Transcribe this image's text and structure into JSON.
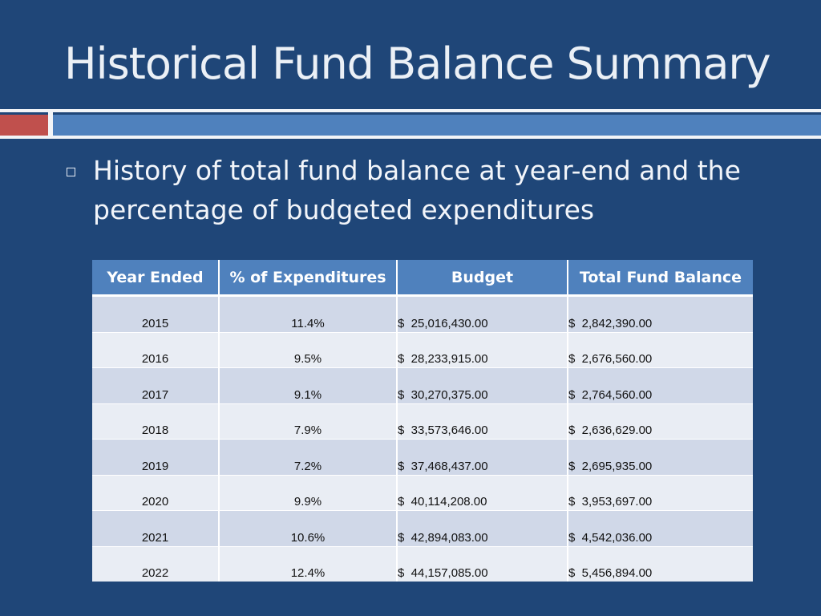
{
  "slide": {
    "title": "Historical Fund Balance Summary",
    "bullet": "History of total fund balance at year-end and the percentage of budgeted expenditures"
  },
  "table": {
    "headers": [
      "Year Ended",
      "% of Expenditures",
      "Budget",
      "Total Fund Balance"
    ],
    "rows": [
      {
        "year": "2015",
        "pct": "11.4%",
        "budget": "$  25,016,430.00",
        "balance": "$  2,842,390.00"
      },
      {
        "year": "2016",
        "pct": "9.5%",
        "budget": "$  28,233,915.00",
        "balance": "$  2,676,560.00"
      },
      {
        "year": "2017",
        "pct": "9.1%",
        "budget": "$  30,270,375.00",
        "balance": "$  2,764,560.00"
      },
      {
        "year": "2018",
        "pct": "7.9%",
        "budget": "$  33,573,646.00",
        "balance": "$  2,636,629.00"
      },
      {
        "year": "2019",
        "pct": "7.2%",
        "budget": "$  37,468,437.00",
        "balance": "$  2,695,935.00"
      },
      {
        "year": "2020",
        "pct": "9.9%",
        "budget": "$  40,114,208.00",
        "balance": "$  3,953,697.00"
      },
      {
        "year": "2021",
        "pct": "10.6%",
        "budget": "$  42,894,083.00",
        "balance": "$  4,542,036.00"
      },
      {
        "year": "2022",
        "pct": "12.4%",
        "budget": "$  44,157,085.00",
        "balance": "$  5,456,894.00"
      }
    ]
  },
  "colors": {
    "background": "#1f4678",
    "header_fill": "#4f81bd",
    "accent_red": "#c0504d",
    "row_odd": "#d0d8e8",
    "row_even": "#e9edf4"
  }
}
